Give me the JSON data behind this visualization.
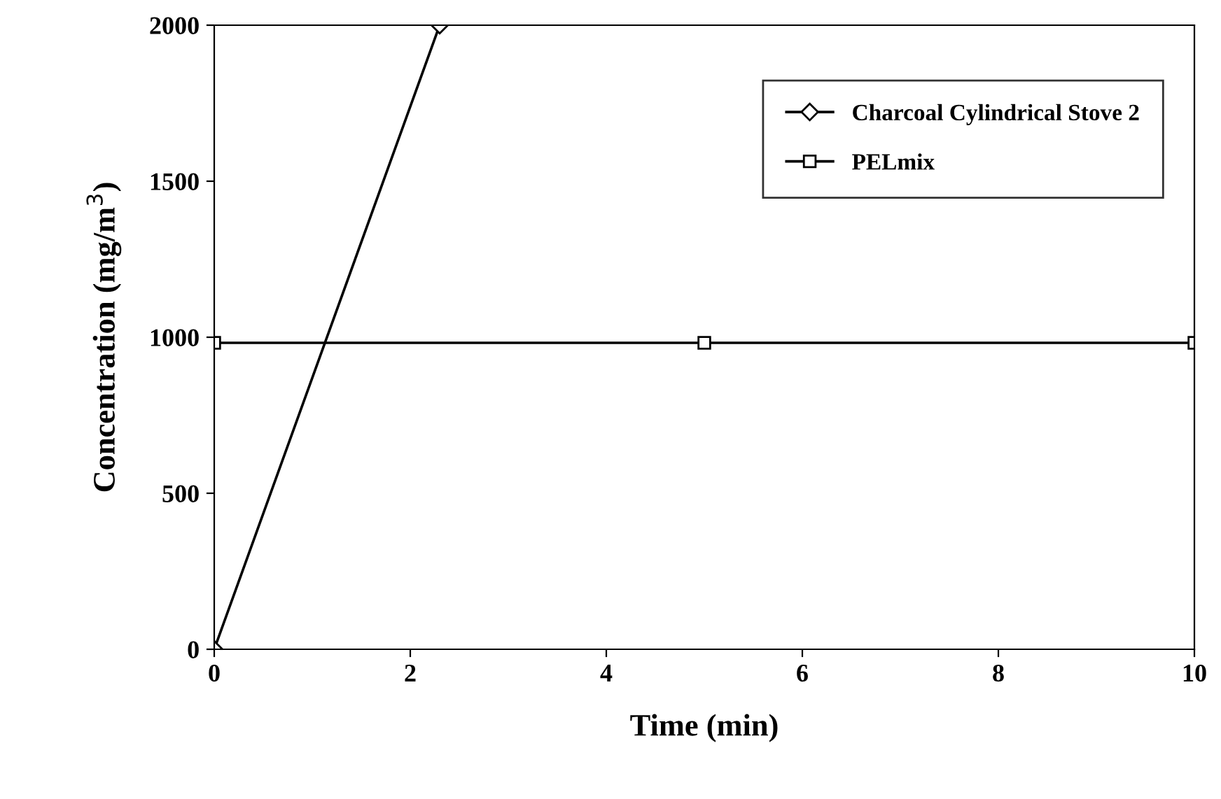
{
  "chart_data": {
    "type": "line",
    "xlabel": "Time (min)",
    "ylabel": "Concentration (mg/m$^{3}$)",
    "xlim": [
      0,
      10
    ],
    "ylim": [
      0,
      2000
    ],
    "xticks": [
      0,
      2,
      4,
      6,
      8,
      10
    ],
    "yticks": [
      0,
      500,
      1000,
      1500,
      2000
    ],
    "grid": false,
    "legend": "top right",
    "line_style": "solid",
    "series": [
      {
        "name": "Charcoal Cylindrical Stove 2",
        "color": "#000000",
        "marker": "diamond",
        "x": [
          0,
          2.3
        ],
        "values": [
          0,
          2000
        ]
      },
      {
        "name": "PELmix",
        "color": "#000000",
        "marker": "square",
        "x": [
          0,
          5,
          10
        ],
        "values": [
          982,
          982,
          982
        ]
      }
    ]
  }
}
